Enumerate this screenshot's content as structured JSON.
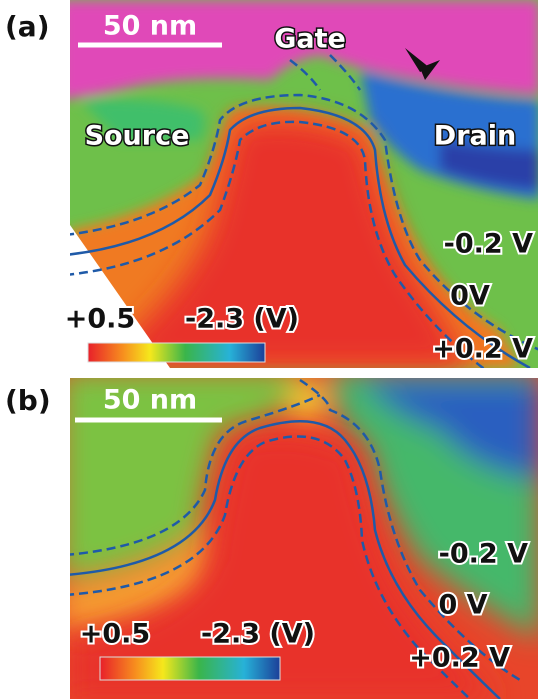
{
  "panels": [
    {
      "label": "(a)",
      "scale_bar": "50 nm",
      "regions": {
        "gate": "Gate",
        "source": "Source",
        "drain": "Drain"
      },
      "contours": [
        "-0.2 V",
        "0V",
        "+0.2 V"
      ],
      "colorbar": {
        "left": "+0.5",
        "right": "-2.3 (V)"
      }
    },
    {
      "label": "(b)",
      "scale_bar": "50 nm",
      "contours": [
        "-0.2 V",
        "0 V",
        "+0.2 V"
      ],
      "colorbar": {
        "left": "+0.5",
        "right": "-2.3 (V)"
      }
    }
  ]
}
